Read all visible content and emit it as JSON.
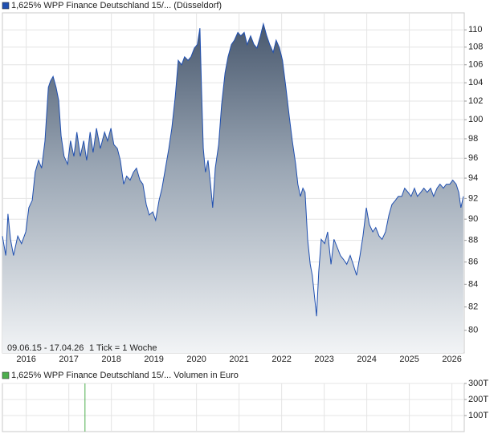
{
  "chart_data": [
    {
      "type": "area",
      "log_scale": true,
      "grid": true,
      "annotations": [
        "09.06.15 - 17.04.26",
        "1 Tick = 1 Woche"
      ],
      "xlim": [
        2015.44,
        2026.29
      ],
      "xticks": [
        2016,
        2017,
        2018,
        2019,
        2020,
        2021,
        2022,
        2023,
        2024,
        2025,
        2026
      ],
      "ylim": [
        78.1,
        112.0
      ],
      "yticks": [
        80,
        82,
        84,
        86,
        88,
        90,
        92,
        94,
        96,
        98,
        100,
        102,
        104,
        106,
        108,
        110
      ],
      "series": [
        {
          "name": "1,625% WPP Finance Deutschland 15/... (Düsseldorf)",
          "color": "#1f4fb0",
          "x": [
            2015.44,
            2015.52,
            2015.57,
            2015.63,
            2015.7,
            2015.8,
            2015.89,
            2015.99,
            2016.06,
            2016.14,
            2016.21,
            2016.29,
            2016.36,
            2016.44,
            2016.52,
            2016.57,
            2016.63,
            2016.7,
            2016.76,
            2016.82,
            2016.89,
            2016.97,
            2017.04,
            2017.12,
            2017.19,
            2017.27,
            2017.35,
            2017.42,
            2017.5,
            2017.57,
            2017.65,
            2017.74,
            2017.84,
            2017.91,
            2017.99,
            2018.06,
            2018.14,
            2018.21,
            2018.29,
            2018.36,
            2018.44,
            2018.52,
            2018.59,
            2018.67,
            2018.74,
            2018.82,
            2018.89,
            2018.97,
            2019.04,
            2019.12,
            2019.19,
            2019.27,
            2019.35,
            2019.42,
            2019.5,
            2019.57,
            2019.65,
            2019.72,
            2019.8,
            2019.87,
            2019.95,
            2020.02,
            2020.08,
            2020.12,
            2020.16,
            2020.21,
            2020.27,
            2020.33,
            2020.38,
            2020.44,
            2020.52,
            2020.59,
            2020.67,
            2020.74,
            2020.82,
            2020.89,
            2020.97,
            2021.04,
            2021.12,
            2021.19,
            2021.27,
            2021.35,
            2021.42,
            2021.5,
            2021.57,
            2021.65,
            2021.72,
            2021.8,
            2021.87,
            2021.95,
            2022.02,
            2022.1,
            2022.18,
            2022.25,
            2022.33,
            2022.38,
            2022.44,
            2022.5,
            2022.55,
            2022.61,
            2022.67,
            2022.72,
            2022.78,
            2022.82,
            2022.87,
            2022.93,
            2023.01,
            2023.08,
            2023.16,
            2023.23,
            2023.31,
            2023.38,
            2023.46,
            2023.53,
            2023.61,
            2023.68,
            2023.76,
            2023.84,
            2023.91,
            2023.99,
            2024.06,
            2024.14,
            2024.21,
            2024.29,
            2024.36,
            2024.44,
            2024.52,
            2024.59,
            2024.67,
            2024.74,
            2024.82,
            2024.89,
            2024.97,
            2025.04,
            2025.12,
            2025.19,
            2025.27,
            2025.34,
            2025.42,
            2025.5,
            2025.57,
            2025.65,
            2025.72,
            2025.8,
            2025.87,
            2025.95,
            2026.02,
            2026.1,
            2026.16,
            2026.21,
            2026.27
          ],
          "values": [
            88.4,
            86.6,
            90.5,
            88.1,
            86.6,
            88.4,
            87.7,
            88.8,
            91.1,
            91.8,
            94.6,
            95.8,
            95.0,
            97.8,
            103.5,
            104.2,
            104.7,
            103.5,
            102.1,
            98.3,
            96.2,
            95.4,
            97.8,
            96.2,
            98.7,
            96.2,
            97.8,
            95.8,
            98.7,
            96.6,
            99.1,
            97.0,
            98.7,
            97.8,
            99.1,
            97.4,
            97.0,
            95.8,
            93.4,
            94.2,
            93.8,
            94.6,
            95.0,
            93.8,
            93.4,
            91.4,
            90.4,
            90.7,
            89.9,
            91.8,
            93.0,
            95.0,
            97.0,
            99.1,
            102.5,
            106.5,
            106.0,
            106.9,
            106.5,
            106.9,
            107.9,
            108.3,
            110.2,
            103.0,
            97.0,
            94.6,
            95.8,
            93.4,
            91.1,
            95.0,
            97.4,
            101.6,
            105.1,
            106.9,
            108.3,
            108.8,
            109.7,
            109.3,
            109.7,
            108.3,
            109.3,
            108.3,
            107.9,
            109.3,
            110.7,
            109.3,
            108.3,
            107.4,
            108.8,
            107.9,
            106.5,
            103.5,
            100.3,
            97.8,
            95.4,
            93.4,
            92.2,
            93.0,
            92.6,
            88.1,
            85.8,
            84.8,
            82.6,
            81.2,
            85.1,
            88.1,
            87.7,
            88.8,
            85.8,
            88.1,
            87.3,
            86.6,
            86.2,
            85.8,
            86.6,
            85.8,
            84.8,
            86.6,
            88.4,
            91.1,
            89.5,
            88.8,
            89.2,
            88.4,
            88.1,
            88.8,
            90.4,
            91.4,
            91.8,
            92.2,
            92.2,
            93.0,
            92.6,
            92.2,
            93.0,
            92.2,
            92.6,
            93.0,
            92.6,
            93.0,
            92.2,
            93.0,
            93.4,
            93.0,
            93.4,
            93.4,
            93.8,
            93.4,
            92.6,
            91.1,
            92.2
          ]
        }
      ]
    },
    {
      "type": "bar",
      "grid": true,
      "xlim": [
        2015.44,
        2026.29
      ],
      "ylim": [
        0,
        300000
      ],
      "yticks": [
        {
          "value": 100000,
          "label": "100T"
        },
        {
          "value": 200000,
          "label": "200T"
        },
        {
          "value": 300000,
          "label": "300T"
        }
      ],
      "series": [
        {
          "name": "1,625% WPP Finance Deutschland 15/... Volumen in Euro",
          "color": "#4cae4c",
          "x": [
            2017.38
          ],
          "values": [
            300000
          ]
        }
      ]
    }
  ]
}
